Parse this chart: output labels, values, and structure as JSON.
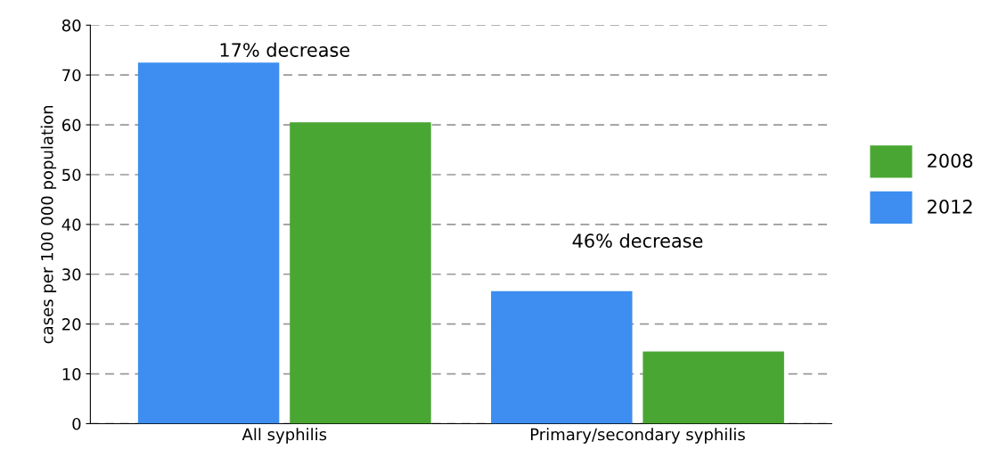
{
  "chart_data": {
    "type": "bar",
    "ylabel": "cases per 100 000 population",
    "categories": [
      "All syphilis",
      "Primary/secondary syphilis"
    ],
    "series": [
      {
        "name": "2012",
        "color": "#3d8ef0",
        "values": [
          72.5,
          26.6
        ]
      },
      {
        "name": "2008",
        "color": "#4aa632",
        "values": [
          60.5,
          14.5
        ]
      }
    ],
    "ylim": [
      0,
      80
    ],
    "yticks": [
      0,
      10,
      20,
      30,
      40,
      50,
      60,
      70,
      80
    ],
    "grid": "y",
    "legend": "right",
    "annotations": [
      "17% decrease",
      "46% decrease"
    ]
  }
}
